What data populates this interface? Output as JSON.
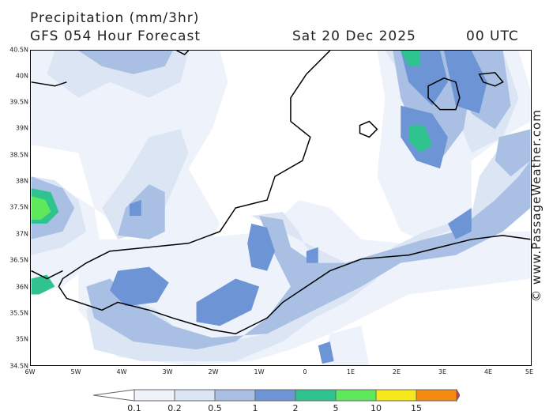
{
  "header": {
    "title": "Precipitation (mm/3hr)",
    "subtitle": "GFS 054 Hour Forecast",
    "date": "Sat 20 Dec 2025",
    "time": "00 UTC"
  },
  "credit": "© www.PassageWeather.com",
  "axes": {
    "lat_labels": [
      "40.5N",
      "40N",
      "39.5N",
      "39N",
      "38.5N",
      "38N",
      "37.5N",
      "37N",
      "36.5N",
      "36N",
      "35.5N",
      "35N",
      "34.5N"
    ],
    "lon_labels": [
      "6W",
      "5W",
      "4W",
      "3W",
      "2W",
      "1W",
      "0",
      "1E",
      "2E",
      "3E",
      "4E",
      "5E"
    ],
    "lat_range": [
      34.5,
      40.5
    ],
    "lon_range": [
      -6,
      5
    ]
  },
  "legend": {
    "levels": [
      "0.1",
      "0.2",
      "0.5",
      "1",
      "2",
      "5",
      "10",
      "15"
    ],
    "colors": [
      "#eef3fb",
      "#dbe5f4",
      "#a9c0e4",
      "#6d95d6",
      "#2fc48f",
      "#5fe85c",
      "#f7e81b",
      "#f58a12",
      "#e8343c"
    ]
  },
  "chart_data": {
    "type": "map",
    "variable": "Precipitation (mm/3hr)",
    "model": "GFS",
    "forecast_hour": 54,
    "valid": "Sat 20 Dec 2025 00 UTC",
    "region": {
      "lat": [
        34.5,
        40.5
      ],
      "lon": [
        -6,
        5
      ]
    },
    "color_levels": [
      0.1,
      0.2,
      0.5,
      1,
      2,
      5,
      10,
      15
    ]
  }
}
